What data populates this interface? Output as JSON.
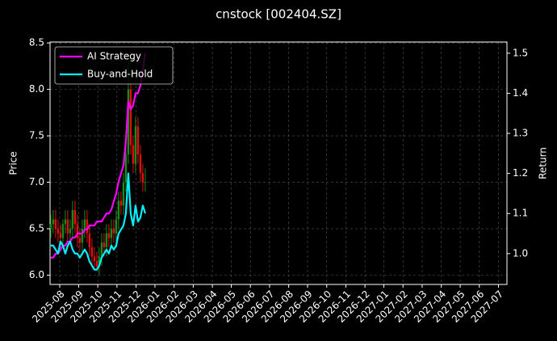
{
  "chart_data": {
    "type": "candlestick",
    "title": "cnstock [002404.SZ]",
    "y_label": "Price",
    "y2_label": "Return",
    "categories": [
      null,
      null,
      null,
      null,
      null,
      null,
      null,
      null,
      null,
      null,
      null,
      null,
      null,
      null,
      null,
      null,
      null,
      null,
      null,
      null,
      null,
      null,
      null,
      null,
      null,
      null,
      null,
      null,
      null,
      null,
      null,
      null,
      null,
      null,
      null,
      null,
      null,
      null,
      null,
      null
    ],
    "open": [
      6.5,
      6.55,
      6.6,
      6.5,
      6.45,
      6.4,
      6.55,
      6.6,
      6.45,
      6.5,
      6.7,
      6.55,
      6.4,
      6.35,
      6.5,
      6.6,
      6.45,
      6.3,
      6.2,
      6.15,
      6.1,
      6.2,
      6.35,
      6.3,
      6.45,
      6.4,
      6.5,
      6.45,
      6.6,
      6.8,
      6.75,
      7.0,
      7.3,
      8.0,
      7.4,
      7.2,
      7.6,
      7.3,
      7.1,
      7.0
    ],
    "high": [
      6.65,
      6.7,
      6.7,
      6.6,
      6.55,
      6.6,
      6.7,
      6.7,
      6.6,
      6.8,
      6.8,
      6.65,
      6.5,
      6.6,
      6.7,
      6.7,
      6.55,
      6.4,
      6.3,
      6.25,
      6.3,
      6.45,
      6.45,
      6.55,
      6.55,
      6.6,
      6.6,
      6.7,
      6.9,
      6.9,
      7.1,
      7.4,
      8.3,
      8.1,
      7.5,
      7.7,
      7.7,
      7.4,
      7.2,
      7.15
    ],
    "low": [
      6.4,
      6.45,
      6.4,
      6.35,
      6.3,
      6.3,
      6.45,
      6.35,
      6.35,
      6.4,
      6.45,
      6.3,
      6.25,
      6.25,
      6.4,
      6.35,
      6.2,
      6.1,
      6.05,
      6.05,
      6.0,
      6.1,
      6.2,
      6.2,
      6.3,
      6.3,
      6.35,
      6.35,
      6.5,
      6.65,
      6.65,
      6.9,
      7.2,
      7.3,
      7.1,
      7.1,
      7.2,
      7.0,
      6.9,
      6.9
    ],
    "close": [
      6.55,
      6.6,
      6.5,
      6.45,
      6.4,
      6.55,
      6.6,
      6.45,
      6.5,
      6.7,
      6.55,
      6.4,
      6.35,
      6.5,
      6.6,
      6.45,
      6.3,
      6.2,
      6.15,
      6.1,
      6.2,
      6.35,
      6.3,
      6.45,
      6.4,
      6.5,
      6.45,
      6.6,
      6.8,
      6.75,
      7.0,
      7.3,
      8.0,
      7.4,
      7.2,
      7.6,
      7.3,
      7.1,
      7.0,
      7.0
    ],
    "up_color": "#1a8a1a",
    "down_color": "#e01010",
    "series": [
      {
        "name": "AI Strategy",
        "color": "#ff00ff",
        "axis": "y2",
        "values": [
          0.99,
          0.99,
          1.0,
          1.0,
          1.01,
          1.02,
          1.02,
          1.03,
          1.03,
          1.04,
          1.04,
          1.05,
          1.05,
          1.05,
          1.06,
          1.06,
          1.07,
          1.07,
          1.07,
          1.08,
          1.08,
          1.08,
          1.09,
          1.1,
          1.1,
          1.11,
          1.13,
          1.15,
          1.18,
          1.2,
          1.22,
          1.28,
          1.38,
          1.36,
          1.37,
          1.4,
          1.4,
          1.42,
          1.46,
          1.5
        ]
      },
      {
        "name": "Buy-and-Hold",
        "color": "#00f0ff",
        "axis": "y2",
        "values": [
          1.02,
          1.02,
          1.01,
          1.0,
          1.03,
          1.02,
          1.0,
          1.02,
          1.03,
          1.01,
          1.0,
          1.0,
          0.99,
          1.0,
          1.01,
          1.0,
          0.98,
          0.97,
          0.96,
          0.96,
          0.97,
          0.99,
          1.0,
          1.01,
          1.0,
          1.02,
          1.01,
          1.02,
          1.05,
          1.06,
          1.07,
          1.1,
          1.2,
          1.1,
          1.07,
          1.12,
          1.08,
          1.09,
          1.12,
          1.1
        ]
      }
    ],
    "xlim": [
      -0.3,
      188.3
    ],
    "xticks": [
      {
        "value": 3.7,
        "label": "2025-08"
      },
      {
        "value": 11.5,
        "label": "2025-09"
      },
      {
        "value": 19.4,
        "label": "2025-10"
      },
      {
        "value": 27.3,
        "label": "2025-11"
      },
      {
        "value": 35.2,
        "label": "2025-12"
      },
      {
        "value": 43.0,
        "label": "2026-01"
      },
      {
        "value": 50.9,
        "label": "2026-02"
      },
      {
        "value": 58.8,
        "label": "2026-03"
      },
      {
        "value": 66.7,
        "label": "2026-04"
      },
      {
        "value": 74.5,
        "label": "2026-05"
      },
      {
        "value": 82.4,
        "label": "2026-06"
      },
      {
        "value": 90.3,
        "label": "2026-07"
      },
      {
        "value": 98.2,
        "label": "2026-08"
      },
      {
        "value": 106.0,
        "label": "2026-09"
      },
      {
        "value": 113.9,
        "label": "2026-10"
      },
      {
        "value": 121.8,
        "label": "2026-11"
      },
      {
        "value": 129.7,
        "label": "2026-12"
      },
      {
        "value": 137.5,
        "label": "2027-01"
      },
      {
        "value": 145.4,
        "label": "2027-02"
      },
      {
        "value": 153.3,
        "label": "2027-03"
      },
      {
        "value": 161.2,
        "label": "2027-04"
      },
      {
        "value": 169.0,
        "label": "2027-05"
      },
      {
        "value": 176.9,
        "label": "2027-06"
      },
      {
        "value": 184.8,
        "label": "2027-07"
      }
    ],
    "ylim": [
      5.9,
      8.51
    ],
    "yticks": [
      {
        "value": 6,
        "label": "6.0"
      },
      6.5,
      {
        "value": 7,
        "label": "7.0"
      },
      7.5,
      {
        "value": 8,
        "label": "8.0"
      },
      8.5
    ],
    "y2lim": [
      0.923,
      1.528
    ],
    "y2ticks": [
      {
        "value": 1,
        "label": "1.0"
      },
      1.1,
      1.2,
      1.3,
      1.4,
      1.5
    ],
    "grid": true,
    "legend": "upper left"
  }
}
